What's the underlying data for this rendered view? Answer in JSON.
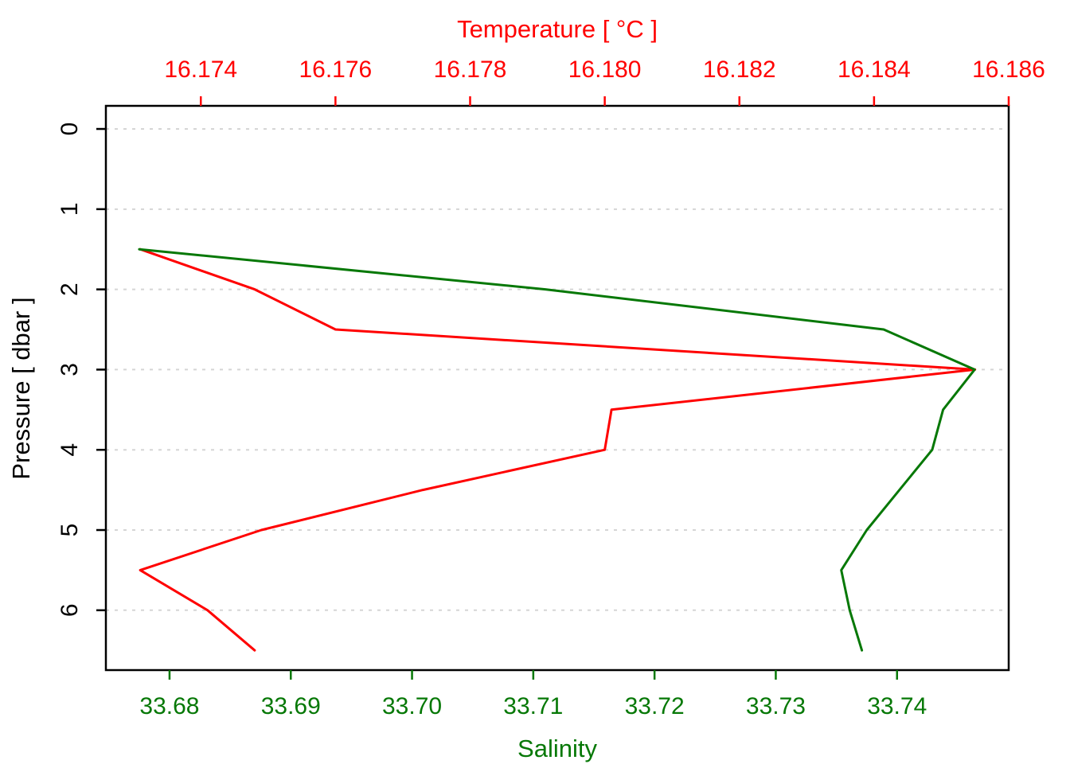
{
  "figure": {
    "background": "#ffffff"
  },
  "chart_data": {
    "type": "line",
    "description": "CTD profile plot: temperature and salinity versus pressure",
    "grid": {
      "show": true,
      "color": "#d5d5d5",
      "style": "dashed",
      "at_pressures": [
        0,
        1,
        2,
        3,
        4,
        5,
        6
      ]
    },
    "top_axis": {
      "label": "Temperature [ °C ]",
      "color": "#ff0000",
      "ticks": [
        16.174,
        16.176,
        16.178,
        16.18,
        16.182,
        16.184,
        16.186
      ],
      "tick_labels": [
        "16.174",
        "16.176",
        "16.178",
        "16.180",
        "16.182",
        "16.184",
        "16.186"
      ],
      "range": [
        16.17259,
        16.186
      ]
    },
    "bottom_axis": {
      "label": "Salinity",
      "color": "#067806",
      "ticks": [
        33.68,
        33.69,
        33.7,
        33.71,
        33.72,
        33.73,
        33.74
      ],
      "tick_labels": [
        "33.68",
        "33.69",
        "33.70",
        "33.71",
        "33.72",
        "33.73",
        "33.74"
      ],
      "range": [
        33.67475,
        33.74921
      ]
    },
    "left_axis": {
      "label": "Pressure [ dbar ]",
      "color": "#000000",
      "ticks": [
        0,
        1,
        2,
        3,
        4,
        5,
        6
      ],
      "tick_labels": [
        "0",
        "1",
        "2",
        "3",
        "4",
        "5",
        "6"
      ],
      "range": [
        -0.288,
        6.746
      ]
    },
    "series": [
      {
        "name": "temperature",
        "color": "#ff0000",
        "x_axis": "top",
        "points": [
          {
            "pressure": 1.5,
            "value": 16.1731
          },
          {
            "pressure": 2.0,
            "value": 16.1748
          },
          {
            "pressure": 2.5,
            "value": 16.176
          },
          {
            "pressure": 3.0,
            "value": 16.1855
          },
          {
            "pressure": 3.5,
            "value": 16.1801
          },
          {
            "pressure": 4.0,
            "value": 16.18
          },
          {
            "pressure": 4.5,
            "value": 16.1773
          },
          {
            "pressure": 5.0,
            "value": 16.1749
          },
          {
            "pressure": 5.5,
            "value": 16.1731
          },
          {
            "pressure": 6.0,
            "value": 16.1741
          },
          {
            "pressure": 6.5,
            "value": 16.1748
          }
        ]
      },
      {
        "name": "salinity",
        "color": "#067806",
        "x_axis": "bottom",
        "points": [
          {
            "pressure": 1.5,
            "value": 33.6775
          },
          {
            "pressure": 2.0,
            "value": 33.711
          },
          {
            "pressure": 2.5,
            "value": 33.7389
          },
          {
            "pressure": 3.0,
            "value": 33.7464
          },
          {
            "pressure": 3.5,
            "value": 33.7438
          },
          {
            "pressure": 4.0,
            "value": 33.7429
          },
          {
            "pressure": 4.5,
            "value": 33.7402
          },
          {
            "pressure": 5.0,
            "value": 33.7375
          },
          {
            "pressure": 5.5,
            "value": 33.7354
          },
          {
            "pressure": 6.0,
            "value": 33.7361
          },
          {
            "pressure": 6.5,
            "value": 33.7371
          }
        ]
      }
    ]
  }
}
